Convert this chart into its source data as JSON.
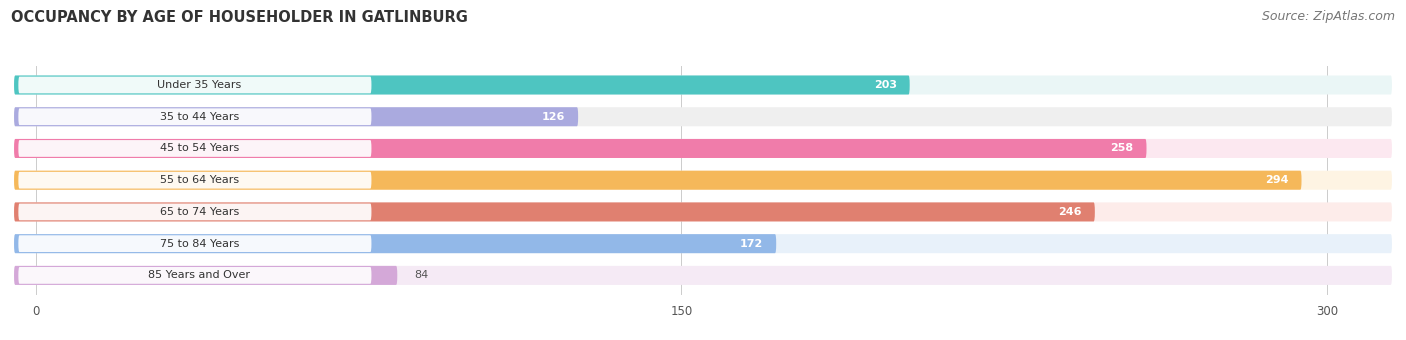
{
  "title": "OCCUPANCY BY AGE OF HOUSEHOLDER IN GATLINBURG",
  "source": "Source: ZipAtlas.com",
  "categories": [
    "Under 35 Years",
    "35 to 44 Years",
    "45 to 54 Years",
    "55 to 64 Years",
    "65 to 74 Years",
    "75 to 84 Years",
    "85 Years and Over"
  ],
  "values": [
    203,
    126,
    258,
    294,
    246,
    172,
    84
  ],
  "bar_colors": [
    "#4ec5c1",
    "#aaaadf",
    "#f07caa",
    "#f5b85a",
    "#e08070",
    "#92b8e8",
    "#d4a8d8"
  ],
  "bar_bg_colors": [
    "#eaf6f6",
    "#efefef",
    "#fce8f0",
    "#fef4e3",
    "#fdecea",
    "#e8f1fa",
    "#f5eaf5"
  ],
  "xlim": [
    -5,
    315
  ],
  "xticks": [
    0,
    150,
    300
  ],
  "title_fontsize": 10.5,
  "source_fontsize": 9,
  "label_fontsize": 8,
  "value_fontsize": 8,
  "background_color": "#ffffff",
  "label_pill_color": "#ffffff",
  "text_color": "#333333",
  "value_inside_color": "#ffffff",
  "value_outside_color": "#555555"
}
